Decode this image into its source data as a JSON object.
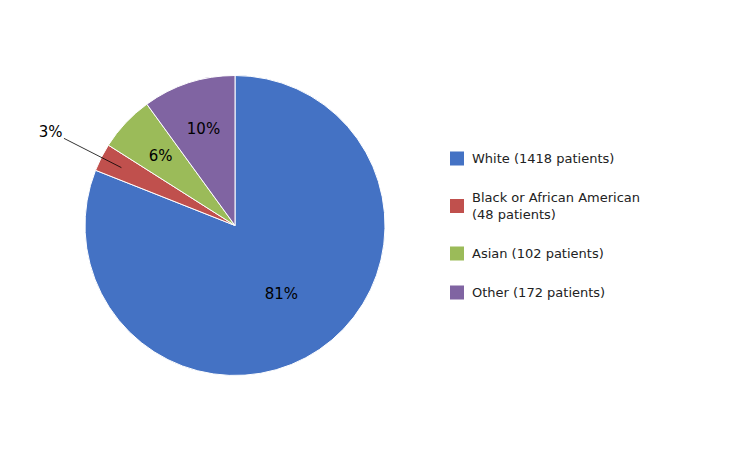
{
  "chart_data": {
    "type": "pie",
    "categories": [
      "White (1418 patients)",
      "Black or African American\n(48 patients)",
      "Asian (102 patients)",
      "Other (172 patients)"
    ],
    "values": [
      81,
      3,
      6,
      10
    ],
    "value_labels": [
      "81%",
      "3%",
      "6%",
      "10%"
    ],
    "colors": [
      "#4472C4",
      "#C0504D",
      "#9BBB59",
      "#8064A2"
    ],
    "data_labels": true,
    "legend": "right"
  }
}
